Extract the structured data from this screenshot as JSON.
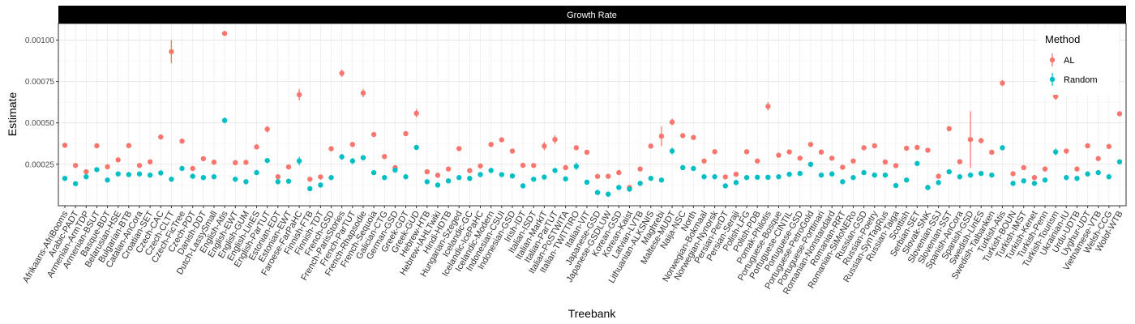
{
  "chart_data": {
    "type": "scatter",
    "facet_title": "Growth Rate",
    "xlabel": "Treebank",
    "ylabel": "Estimate",
    "ylim": [
      0.0,
      0.0011
    ],
    "yticks": [
      "0.00025",
      "0.00050",
      "0.00075",
      "0.00100"
    ],
    "ytick_values": [
      0.00025,
      0.0005,
      0.00075,
      0.001
    ],
    "grid": true,
    "legend": {
      "title": "Method",
      "placement": "top-right",
      "entries": [
        {
          "name": "AL",
          "color": "#F8766D"
        },
        {
          "name": "Random",
          "color": "#00BFC4"
        }
      ]
    },
    "categories": [
      "Afrikaans-AfriBooms",
      "Arabic-PADT",
      "Armenian-ArmTDP",
      "Armenian-BSUT",
      "Basque-BDT",
      "Belarusian-HSE",
      "Bulgarian-BTB",
      "Catalan-AnCora",
      "Croatian-SET",
      "Czech-CAC",
      "Czech-CLTT",
      "Czech-FicTree",
      "Czech-PDT",
      "Danish-DDT",
      "Dutch-LassySmall",
      "English-Atis",
      "English-EWT",
      "English-GUM",
      "English-LinES",
      "English-ParTUT",
      "Estonian-EDT",
      "Estonian-EWT",
      "Faroese-FarPaHC",
      "Finnish-FTB",
      "Finnish-TDT",
      "French-GSD",
      "French-ParisStories",
      "French-ParTUT",
      "French-Rhapsodie",
      "French-Sequoia",
      "Galician-CTG",
      "German-GSD",
      "Greek-GDT",
      "Greek-GUD",
      "Hebrew-HTB",
      "Hebrew-IAHLTwiki",
      "Hindi-HDTB",
      "Hungarian-Szeged",
      "Icelandic-GC",
      "Icelandic-IcePaHC",
      "Icelandic-Modern",
      "Indonesian-CSUI",
      "Indonesian-GSD",
      "Irish-IDT",
      "Italian-ISDT",
      "Italian-MarkIT",
      "Italian-ParTUT",
      "Italian-PoSTWITA",
      "Italian-TWITTIRO",
      "Italian-VIT",
      "Japanese-GSD",
      "Japanese-GSDLUW",
      "Korean-GSD",
      "Korean-Kaist",
      "Latvian-LVTB",
      "Lithuanian-ALKSNIS",
      "Maghrebi",
      "Maltese-MUDT",
      "Naija-NSC",
      "North",
      "Norwegian-Bokmaal",
      "Norwegian-Nynorsk",
      "Persian-PerDT",
      "Persian-Seraji",
      "Polish-LFG",
      "Polish-PDB",
      "Pomak-Philotis",
      "Portuguese-Bosque",
      "Portuguese-CINTIL",
      "Portuguese-GSD",
      "Portuguese-PetroGold",
      "Portuguese-Porttinari",
      "Romanian-Nonstandard",
      "Romanian-RRT",
      "Romanian-SiMoNERo",
      "Russian-GSD",
      "Russian-Poetry",
      "Russian-SynTagRus",
      "Russian-Taiga",
      "Scottish",
      "Serbian-SET",
      "Slovak-SNK",
      "Slovenian-SSJ",
      "Slovenian-SST",
      "Spanish-AnCora",
      "Spanish-GSD",
      "Swedish-LinES",
      "Swedish-Talbanken",
      "Turkish-Atis",
      "Turkish-BOUN",
      "Turkish-IMST",
      "Turkish-Kenet",
      "Turkish-Penn",
      "Turkish-Tourism",
      "Ukrainian-IU",
      "Urdu-UDTB",
      "Uyghur-UDT",
      "Vietnamese-VTB",
      "Welsh-CCG",
      "Wolof-WTB"
    ],
    "series": [
      {
        "name": "AL",
        "color": "#F8766D",
        "values": [
          0.000365,
          0.000243,
          0.000205,
          0.000362,
          0.000235,
          0.000277,
          0.000363,
          0.000243,
          0.000265,
          0.000415,
          0.00093,
          0.00039,
          0.000225,
          0.000284,
          0.000263,
          0.00104,
          0.00026,
          0.000262,
          0.000355,
          0.000462,
          0.000175,
          0.000234,
          0.00067,
          0.00016,
          0.000174,
          0.000344,
          0.0008,
          0.00037,
          0.00068,
          0.00043,
          0.000297,
          0.00023,
          0.000435,
          0.000558,
          0.000205,
          0.000184,
          0.000222,
          0.000345,
          0.000212,
          0.00024,
          0.00037,
          0.000398,
          0.00033,
          0.000244,
          0.000243,
          0.00036,
          0.0004,
          0.00023,
          0.00035,
          0.000323,
          0.000177,
          0.000178,
          0.0002,
          0.00011,
          0.000222,
          0.00036,
          0.00042,
          0.000505,
          0.000423,
          0.000412,
          0.00027,
          0.000326,
          0.000174,
          0.00019,
          0.000326,
          0.00027,
          0.0006,
          0.000305,
          0.000325,
          0.000287,
          0.00037,
          0.000324,
          0.000287,
          0.000232,
          0.00027,
          0.00035,
          0.000362,
          0.000264,
          0.000242,
          0.000347,
          0.000352,
          0.000335,
          0.000178,
          0.000465,
          0.000266,
          0.0004,
          0.000393,
          0.000323,
          0.00074,
          0.000193,
          0.00023,
          0.00017,
          0.000222,
          0.00066,
          0.00033,
          0.000222,
          0.000362,
          0.000285,
          0.000358,
          0.000555
        ],
        "errors": [
          8e-06,
          7e-06,
          6e-06,
          8e-06,
          6e-06,
          7e-06,
          8e-06,
          6e-06,
          7e-06,
          1.2e-05,
          7e-05,
          1.2e-05,
          6e-06,
          8e-06,
          7e-06,
          1.2e-05,
          7e-06,
          7e-06,
          9e-06,
          2e-05,
          6e-06,
          7e-06,
          3.5e-05,
          6e-06,
          6e-06,
          1e-05,
          2.2e-05,
          1e-05,
          2.5e-05,
          1e-05,
          8e-06,
          7e-06,
          1e-05,
          2.5e-05,
          7e-06,
          6e-06,
          7e-06,
          1e-05,
          6e-06,
          7e-06,
          1e-05,
          1.2e-05,
          1e-05,
          7e-06,
          7e-06,
          2.5e-05,
          2.5e-05,
          7e-06,
          1.5e-05,
          1e-05,
          6e-06,
          6e-06,
          6e-06,
          5e-06,
          6e-06,
          1.2e-05,
          6e-05,
          2e-05,
          1.2e-05,
          1.2e-05,
          7e-06,
          1e-05,
          6e-06,
          6e-06,
          1e-05,
          7e-06,
          2.5e-05,
          1e-05,
          1e-05,
          8e-06,
          1e-05,
          1e-05,
          8e-06,
          6e-06,
          7e-06,
          1e-05,
          1e-05,
          7e-06,
          7e-06,
          1e-05,
          1e-05,
          1e-05,
          6e-06,
          1.5e-05,
          7e-06,
          0.00017,
          1.2e-05,
          1e-05,
          1.8e-05,
          6e-06,
          7e-06,
          6e-06,
          6e-06,
          2e-05,
          1e-05,
          6e-06,
          1e-05,
          8e-06,
          1e-05,
          1.5e-05
        ]
      },
      {
        "name": "Random",
        "color": "#00BFC4",
        "values": [
          0.000165,
          0.000133,
          0.000175,
          0.000218,
          0.000155,
          0.000192,
          0.000188,
          0.000192,
          0.000185,
          0.000198,
          0.00016,
          0.000225,
          0.000178,
          0.00017,
          0.000175,
          0.000515,
          0.00016,
          0.000145,
          0.0002,
          0.000273,
          0.000145,
          0.000148,
          0.00027,
          0.000103,
          0.000125,
          0.00017,
          0.000295,
          0.00027,
          0.00029,
          0.0002,
          0.00017,
          0.000215,
          0.000175,
          0.000352,
          0.000145,
          0.000125,
          0.00015,
          0.00017,
          0.000165,
          0.000188,
          0.000213,
          0.000188,
          0.00018,
          0.00012,
          0.00016,
          0.000173,
          0.000213,
          0.000162,
          0.000238,
          0.000142,
          8e-05,
          7e-05,
          0.00011,
          0.0001,
          0.000135,
          0.000165,
          0.000155,
          0.00033,
          0.00023,
          0.000225,
          0.000175,
          0.000175,
          0.00012,
          0.00014,
          0.00017,
          0.000172,
          0.000172,
          0.000175,
          0.00019,
          0.000195,
          0.00025,
          0.000185,
          0.000192,
          0.000145,
          0.00017,
          0.0002,
          0.000185,
          0.000185,
          0.000122,
          0.000155,
          0.000255,
          0.00011,
          0.00014,
          0.000205,
          0.000175,
          0.000185,
          0.000195,
          0.000185,
          0.00035,
          0.000135,
          0.00015,
          0.000135,
          0.000155,
          0.000325,
          0.00017,
          0.000165,
          0.000192,
          0.0002,
          0.000175,
          0.000265
        ],
        "errors": [
          6e-06,
          5e-06,
          6e-06,
          7e-06,
          6e-06,
          6e-06,
          6e-06,
          6e-06,
          6e-06,
          6e-06,
          6e-06,
          7e-06,
          6e-06,
          6e-06,
          6e-06,
          1.8e-05,
          6e-06,
          6e-06,
          6e-06,
          1.2e-05,
          6e-06,
          6e-06,
          2.5e-05,
          5e-06,
          5e-06,
          6e-06,
          1.8e-05,
          1.8e-05,
          1.2e-05,
          6e-06,
          6e-06,
          7e-06,
          6e-06,
          1.2e-05,
          6e-06,
          5e-06,
          6e-06,
          6e-06,
          6e-06,
          6e-06,
          7e-06,
          6e-06,
          6e-06,
          5e-06,
          6e-06,
          6e-06,
          1e-05,
          6e-06,
          2.2e-05,
          6e-06,
          5e-06,
          5e-06,
          5e-06,
          5e-06,
          5e-06,
          6e-06,
          6e-06,
          2e-05,
          1e-05,
          8e-06,
          6e-06,
          6e-06,
          5e-06,
          6e-06,
          6e-06,
          6e-06,
          6e-06,
          6e-06,
          6e-06,
          6e-06,
          1e-05,
          6e-06,
          6e-06,
          6e-06,
          6e-06,
          6e-06,
          6e-06,
          6e-06,
          5e-06,
          6e-06,
          1e-05,
          5e-06,
          6e-06,
          8e-06,
          6e-06,
          6e-06,
          6e-06,
          6e-06,
          1.5e-05,
          5e-06,
          6e-06,
          5e-06,
          6e-06,
          2e-05,
          6e-06,
          6e-06,
          6e-06,
          1.2e-05,
          6e-06,
          1.5e-05
        ]
      }
    ]
  }
}
